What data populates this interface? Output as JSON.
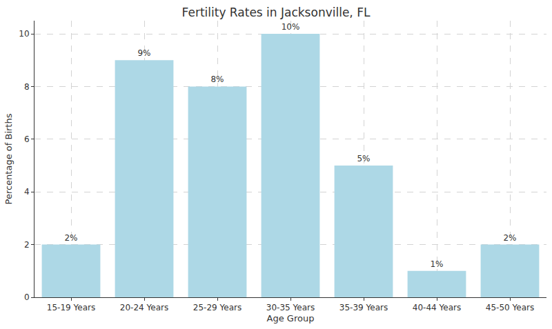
{
  "chart_data": {
    "type": "bar",
    "title": "Fertility Rates in Jacksonville, FL",
    "xlabel": "Age Group",
    "ylabel": "Percentage of Births",
    "categories": [
      "15-19 Years",
      "20-24 Years",
      "25-29 Years",
      "30-35 Years",
      "35-39 Years",
      "40-44 Years",
      "45-50 Years"
    ],
    "values": [
      2,
      9,
      8,
      10,
      5,
      1,
      2
    ],
    "value_labels": [
      "2%",
      "9%",
      "8%",
      "10%",
      "5%",
      "1%",
      "2%"
    ],
    "color": "#add8e6",
    "ylim": [
      0,
      10.5
    ],
    "yticks": [
      0,
      2,
      4,
      6,
      8,
      10
    ],
    "grid": true,
    "data_labels": true
  }
}
